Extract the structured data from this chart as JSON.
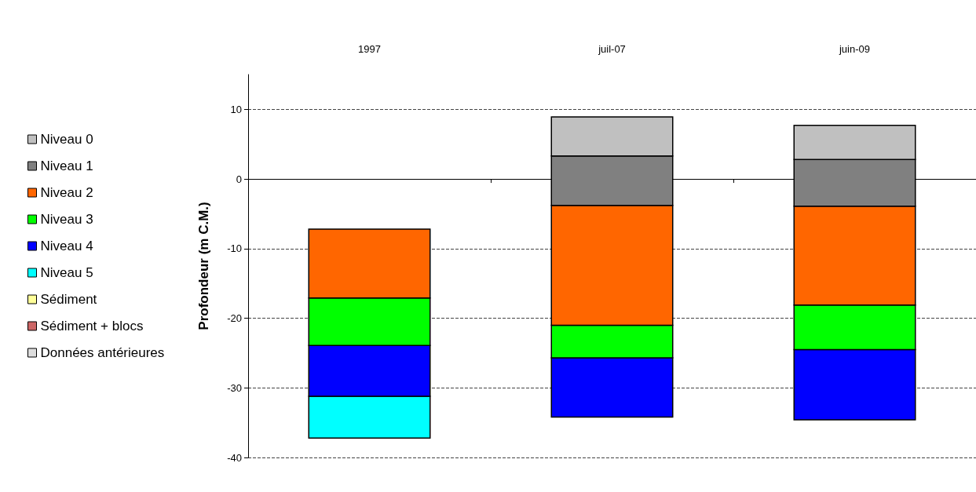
{
  "chart_data": {
    "type": "bar",
    "ylabel": "Profondeur (m C.M.)",
    "categories": [
      "1997",
      "juil-07",
      "juin-09"
    ],
    "series": [
      {
        "name": "Données antérieures",
        "color": "#dddddd",
        "values": [
          null,
          null,
          null
        ]
      },
      {
        "name": "Sédiment + blocs",
        "color": "#cc6666",
        "values": [
          null,
          null,
          null
        ]
      },
      {
        "name": "Sédiment",
        "color": "#ffff99",
        "values": [
          null,
          null,
          null
        ]
      },
      {
        "name": "Niveau 5",
        "color": "#00ffff",
        "values": [
          6.0,
          null,
          null
        ],
        "base": [
          -37.2,
          null,
          null
        ]
      },
      {
        "name": "Niveau 4",
        "color": "#0000ff",
        "values": [
          7.3,
          8.5,
          10.1
        ],
        "base": [
          -31.2,
          -34.2,
          -34.6
        ]
      },
      {
        "name": "Niveau 3",
        "color": "#00ff00",
        "values": [
          6.8,
          4.7,
          6.4
        ],
        "base": [
          -23.9,
          -25.7,
          -24.5
        ]
      },
      {
        "name": "Niveau 2",
        "color": "#ff6600",
        "values": [
          9.9,
          17.2,
          14.2
        ],
        "base": [
          -17.1,
          -21.0,
          -18.1
        ]
      },
      {
        "name": "Niveau 1",
        "color": "#808080",
        "values": [
          null,
          7.1,
          6.7
        ],
        "base": [
          null,
          -3.8,
          -3.9
        ]
      },
      {
        "name": "Niveau 0",
        "color": "#c0c0c0",
        "values": [
          null,
          5.6,
          4.9
        ],
        "base": [
          null,
          3.3,
          2.8
        ]
      }
    ],
    "ylim": [
      -40,
      15
    ],
    "yticks": [
      -40,
      -30,
      -20,
      -10,
      0,
      10
    ],
    "grid": "y",
    "legend": "left"
  }
}
